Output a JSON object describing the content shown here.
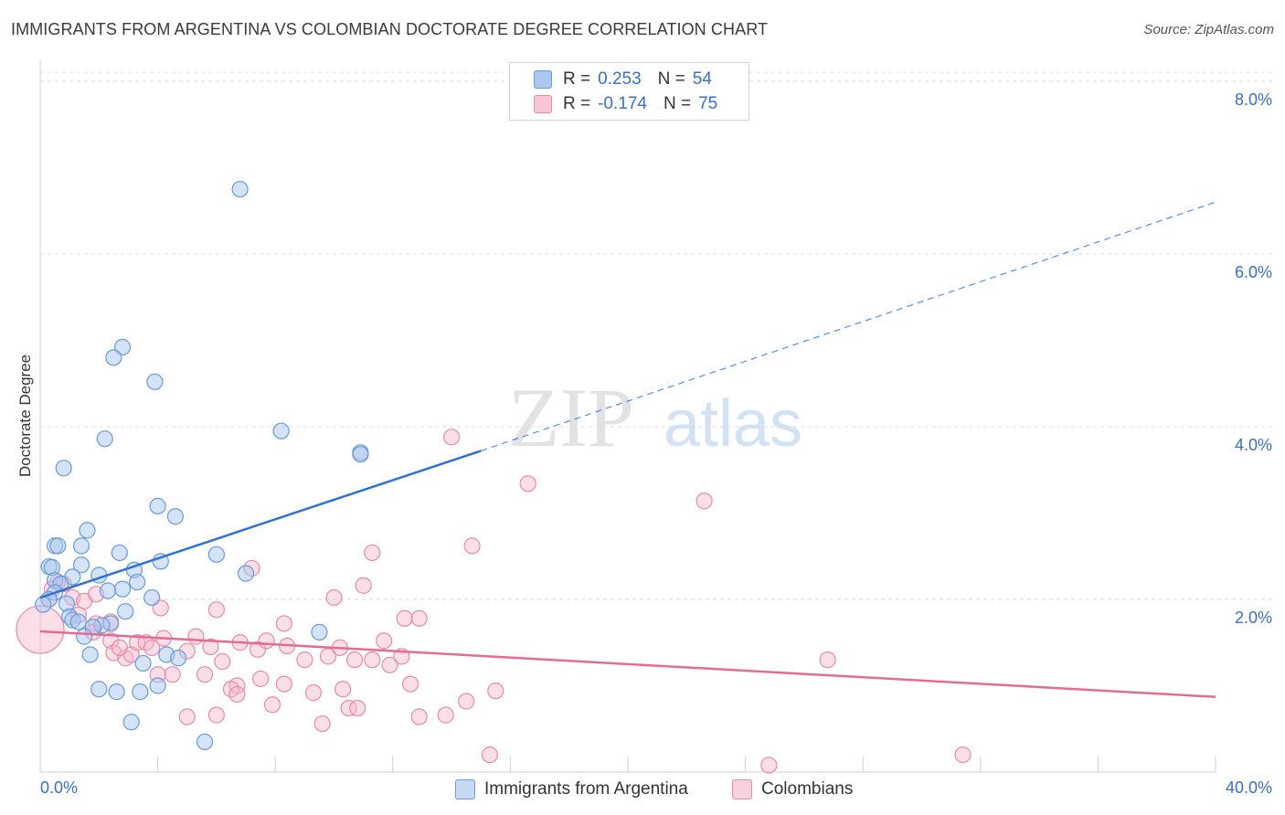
{
  "header": {
    "title": "IMMIGRANTS FROM ARGENTINA VS COLOMBIAN DOCTORATE DEGREE CORRELATION CHART",
    "source": "Source: ZipAtlas.com"
  },
  "legend": {
    "rows": [
      {
        "r_label": "R =",
        "r_value": "0.253",
        "n_label": "N =",
        "n_value": "54"
      },
      {
        "r_label": "R =",
        "r_value": "-0.174",
        "n_label": "N =",
        "n_value": "75"
      }
    ]
  },
  "watermark": {
    "zip": "ZIP",
    "atlas": "atlas"
  },
  "colors": {
    "blue_fill": "#aac8f0",
    "blue_stroke": "#6a9ad8",
    "blue_line": "#2f72cf",
    "pink_fill": "#f6b8cc",
    "pink_stroke": "#e78aa8",
    "pink_line": "#e46b95",
    "tick_text": "#3a6fc4",
    "grid": "#dddddd"
  },
  "chart_data": {
    "type": "scatter",
    "title": "IMMIGRANTS FROM ARGENTINA VS COLOMBIAN DOCTORATE DEGREE CORRELATION CHART",
    "xlabel": "",
    "ylabel": "Doctorate Degree",
    "xlim": [
      0,
      40
    ],
    "ylim": [
      0,
      8.2
    ],
    "x_tick_labels": [
      "0.0%",
      "40.0%"
    ],
    "y_ticks": [
      2,
      4,
      6,
      8
    ],
    "y_tick_labels": [
      "2.0%",
      "4.0%",
      "6.0%",
      "8.0%"
    ],
    "grid": true,
    "legend_position": "top-center",
    "series": [
      {
        "name": "Immigrants from Argentina",
        "color": "#6a9ad8",
        "trend": {
          "x0": 0,
          "y0": 2.02,
          "x1": 15,
          "y1": 3.72,
          "dashed_to_x": 40,
          "dashed_to_y": 6.6
        },
        "points": [
          [
            6.8,
            6.75
          ],
          [
            2.8,
            4.92
          ],
          [
            2.5,
            4.8
          ],
          [
            3.9,
            4.52
          ],
          [
            8.2,
            3.95
          ],
          [
            10.9,
            3.7
          ],
          [
            10.9,
            3.68
          ],
          [
            2.2,
            3.86
          ],
          [
            0.8,
            3.52
          ],
          [
            4.0,
            3.08
          ],
          [
            4.6,
            2.96
          ],
          [
            1.6,
            2.8
          ],
          [
            0.5,
            2.62
          ],
          [
            0.6,
            2.62
          ],
          [
            1.4,
            2.62
          ],
          [
            2.7,
            2.54
          ],
          [
            6.0,
            2.52
          ],
          [
            4.1,
            2.44
          ],
          [
            0.3,
            2.38
          ],
          [
            0.4,
            2.37
          ],
          [
            1.4,
            2.4
          ],
          [
            3.2,
            2.34
          ],
          [
            1.1,
            2.26
          ],
          [
            2.0,
            2.28
          ],
          [
            7.0,
            2.3
          ],
          [
            0.5,
            2.22
          ],
          [
            0.7,
            2.18
          ],
          [
            3.3,
            2.2
          ],
          [
            2.3,
            2.1
          ],
          [
            2.8,
            2.12
          ],
          [
            0.5,
            2.08
          ],
          [
            3.8,
            2.02
          ],
          [
            0.3,
            2.0
          ],
          [
            0.1,
            1.94
          ],
          [
            0.9,
            1.95
          ],
          [
            2.9,
            1.86
          ],
          [
            1.0,
            1.8
          ],
          [
            1.1,
            1.76
          ],
          [
            1.3,
            1.74
          ],
          [
            2.4,
            1.72
          ],
          [
            2.1,
            1.7
          ],
          [
            1.8,
            1.68
          ],
          [
            9.5,
            1.62
          ],
          [
            1.5,
            1.57
          ],
          [
            1.7,
            1.36
          ],
          [
            4.3,
            1.36
          ],
          [
            4.7,
            1.32
          ],
          [
            3.5,
            1.26
          ],
          [
            2.0,
            0.96
          ],
          [
            2.6,
            0.93
          ],
          [
            3.4,
            0.93
          ],
          [
            4.0,
            1.0
          ],
          [
            3.1,
            0.58
          ],
          [
            5.6,
            0.35
          ]
        ]
      },
      {
        "name": "Colombians",
        "color": "#e78aa8",
        "trend": {
          "x0": 0,
          "y0": 1.63,
          "x1": 40,
          "y1": 0.87
        },
        "points": [
          [
            0.0,
            1.65
          ],
          [
            0.6,
            2.2
          ],
          [
            0.8,
            2.18
          ],
          [
            1.1,
            2.02
          ],
          [
            1.5,
            1.98
          ],
          [
            1.9,
            2.06
          ],
          [
            0.4,
            2.12
          ],
          [
            0.3,
            2.0
          ],
          [
            1.3,
            1.82
          ],
          [
            1.9,
            1.72
          ],
          [
            2.4,
            1.74
          ],
          [
            1.8,
            1.62
          ],
          [
            2.4,
            1.52
          ],
          [
            2.5,
            1.38
          ],
          [
            2.9,
            1.32
          ],
          [
            3.1,
            1.36
          ],
          [
            3.3,
            1.5
          ],
          [
            3.6,
            1.5
          ],
          [
            3.8,
            1.44
          ],
          [
            4.2,
            1.55
          ],
          [
            5.0,
            1.4
          ],
          [
            5.3,
            1.57
          ],
          [
            5.8,
            1.45
          ],
          [
            6.2,
            1.28
          ],
          [
            6.0,
            1.88
          ],
          [
            6.8,
            1.5
          ],
          [
            7.4,
            1.42
          ],
          [
            7.7,
            1.52
          ],
          [
            8.3,
            1.72
          ],
          [
            8.4,
            1.46
          ],
          [
            9.0,
            1.3
          ],
          [
            9.8,
            1.34
          ],
          [
            10.2,
            1.44
          ],
          [
            10.7,
            1.3
          ],
          [
            11.3,
            1.3
          ],
          [
            11.7,
            1.52
          ],
          [
            11.9,
            1.24
          ],
          [
            12.3,
            1.34
          ],
          [
            12.4,
            1.78
          ],
          [
            12.9,
            1.78
          ],
          [
            11.0,
            2.16
          ],
          [
            11.3,
            2.54
          ],
          [
            10.0,
            2.02
          ],
          [
            7.2,
            2.36
          ],
          [
            4.5,
            1.13
          ],
          [
            4.0,
            1.13
          ],
          [
            5.6,
            1.13
          ],
          [
            7.5,
            1.08
          ],
          [
            6.7,
            1.0
          ],
          [
            6.5,
            0.96
          ],
          [
            8.3,
            1.02
          ],
          [
            9.3,
            0.92
          ],
          [
            10.3,
            0.96
          ],
          [
            12.6,
            1.02
          ],
          [
            6.7,
            0.9
          ],
          [
            7.9,
            0.78
          ],
          [
            10.5,
            0.74
          ],
          [
            10.8,
            0.74
          ],
          [
            12.9,
            0.64
          ],
          [
            13.8,
            0.66
          ],
          [
            14.5,
            0.82
          ],
          [
            15.5,
            0.94
          ],
          [
            5.0,
            0.64
          ],
          [
            6.0,
            0.66
          ],
          [
            9.6,
            0.56
          ],
          [
            14.7,
            2.62
          ],
          [
            14.0,
            3.88
          ],
          [
            16.6,
            3.34
          ],
          [
            22.6,
            3.14
          ],
          [
            26.8,
            1.3
          ],
          [
            15.3,
            0.2
          ],
          [
            24.8,
            0.08
          ],
          [
            31.4,
            0.2
          ],
          [
            4.1,
            1.9
          ],
          [
            2.7,
            1.44
          ]
        ]
      }
    ]
  }
}
